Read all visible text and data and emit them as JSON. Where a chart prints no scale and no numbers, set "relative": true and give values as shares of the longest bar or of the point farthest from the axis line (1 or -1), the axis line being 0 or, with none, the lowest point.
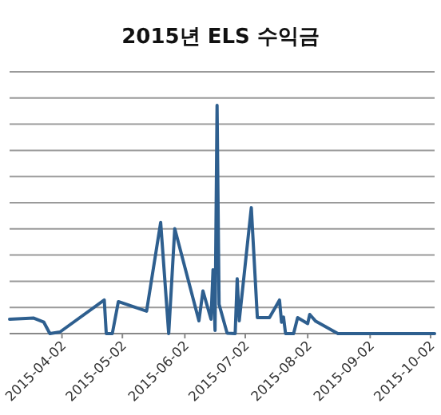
{
  "chart_data": {
    "type": "line",
    "title": "2015년 ELS 수익금",
    "relative": true,
    "grid": "y",
    "xlim": [
      "2015-03-07",
      "2015-10-04"
    ],
    "xticks": [
      "2015-04-02",
      "2015-05-02",
      "2015-06-02",
      "2015-07-02",
      "2015-08-02",
      "2015-09-02",
      "2015-10-02"
    ],
    "x": [
      "2015-03-07",
      "2015-03-19",
      "2015-03-24",
      "2015-03-27",
      "2015-04-01",
      "2015-04-23",
      "2015-04-24",
      "2015-04-27",
      "2015-04-30",
      "2015-05-14",
      "2015-05-21",
      "2015-05-25",
      "2015-05-28",
      "2015-06-09",
      "2015-06-11",
      "2015-06-15",
      "2015-06-16",
      "2015-06-17",
      "2015-06-18",
      "2015-06-19",
      "2015-06-23",
      "2015-06-27",
      "2015-06-28",
      "2015-06-29",
      "2015-07-05",
      "2015-07-08",
      "2015-07-14",
      "2015-07-19",
      "2015-07-20",
      "2015-07-21",
      "2015-07-22",
      "2015-07-26",
      "2015-07-28",
      "2015-08-02",
      "2015-08-03",
      "2015-08-06",
      "2015-08-17",
      "2015-10-04"
    ],
    "series": [
      {
        "color": "#2e5f8f",
        "values": [
          0.063,
          0.068,
          0.05,
          0,
          0.007,
          0.147,
          0,
          0,
          0.14,
          0.098,
          0.487,
          0,
          0.46,
          0.056,
          0.187,
          0.063,
          0.28,
          0.014,
          1,
          0.128,
          0.002,
          0,
          0.24,
          0.056,
          0.552,
          0.07,
          0.07,
          0.147,
          0.05,
          0.072,
          0,
          0,
          0.07,
          0.044,
          0.084,
          0.054,
          0,
          0
        ]
      }
    ]
  }
}
